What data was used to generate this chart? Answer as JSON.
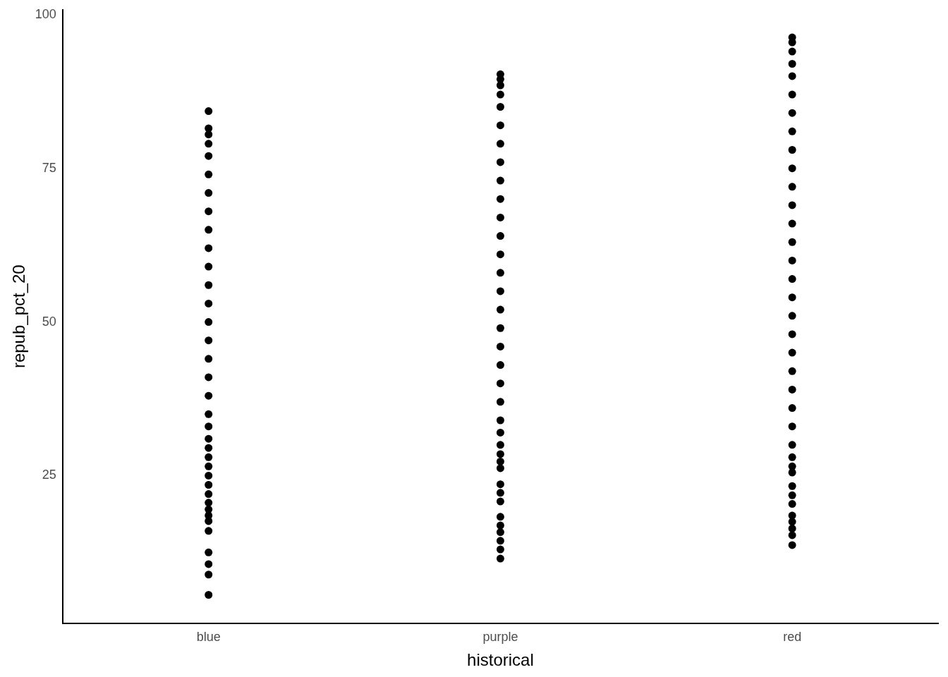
{
  "chart_data": {
    "type": "scatter",
    "xlabel": "historical",
    "ylabel": "repub_pct_20",
    "categories": [
      "blue",
      "purple",
      "red"
    ],
    "ylim": [
      1.0,
      100.8
    ],
    "yticks": [
      25,
      50,
      75,
      100
    ],
    "grid": false,
    "legend": false,
    "marker": "circle",
    "series": [
      {
        "color": "#000000",
        "x": [
          "blue",
          "blue",
          "blue",
          "blue",
          "blue",
          "blue",
          "blue",
          "blue",
          "blue",
          "blue",
          "blue",
          "blue",
          "blue",
          "blue",
          "blue",
          "blue",
          "blue",
          "blue",
          "blue",
          "blue",
          "blue",
          "blue",
          "blue",
          "blue",
          "blue",
          "blue",
          "blue",
          "blue",
          "blue",
          "blue",
          "blue",
          "blue",
          "blue",
          "blue",
          "blue",
          "blue"
        ],
        "values": [
          5.6,
          8.9,
          10.6,
          12.5,
          16.0,
          17.6,
          18.5,
          19.5,
          20.6,
          22.0,
          23.5,
          25.0,
          26.5,
          28.0,
          29.5,
          31,
          33,
          35,
          38,
          41,
          44,
          47,
          50,
          53,
          56,
          59,
          62,
          65,
          68,
          71,
          74,
          77,
          79,
          80.5,
          81.5,
          84.3
        ]
      },
      {
        "color": "#000000",
        "x": [
          "purple",
          "purple",
          "purple",
          "purple",
          "purple",
          "purple",
          "purple",
          "purple",
          "purple",
          "purple",
          "purple",
          "purple",
          "purple",
          "purple",
          "purple",
          "purple",
          "purple",
          "purple",
          "purple",
          "purple",
          "purple",
          "purple",
          "purple",
          "purple",
          "purple",
          "purple",
          "purple",
          "purple",
          "purple",
          "purple",
          "purple",
          "purple",
          "purple",
          "purple",
          "purple",
          "purple"
        ],
        "values": [
          11.5,
          13.0,
          14.4,
          15.8,
          16.9,
          18.3,
          20.8,
          22.2,
          23.6,
          26.2,
          27.3,
          28.5,
          30,
          32,
          34,
          37,
          40,
          43,
          46,
          49,
          52,
          55,
          58,
          61,
          64,
          67,
          70,
          73,
          76,
          79,
          82,
          85,
          87,
          88.5,
          89.5,
          90.3
        ]
      },
      {
        "color": "#000000",
        "x": [
          "red",
          "red",
          "red",
          "red",
          "red",
          "red",
          "red",
          "red",
          "red",
          "red",
          "red",
          "red",
          "red",
          "red",
          "red",
          "red",
          "red",
          "red",
          "red",
          "red",
          "red",
          "red",
          "red",
          "red",
          "red",
          "red",
          "red",
          "red",
          "red",
          "red",
          "red",
          "red",
          "red",
          "red",
          "red",
          "red"
        ],
        "values": [
          13.7,
          15.3,
          16.4,
          17.5,
          18.5,
          20.4,
          21.8,
          23.3,
          25.5,
          26.5,
          28,
          30,
          33,
          36,
          39,
          42,
          45,
          48,
          51,
          54,
          57,
          60,
          63,
          66,
          69,
          72,
          75,
          78,
          81,
          84,
          87,
          90,
          92,
          94,
          95.5,
          96.3
        ]
      }
    ]
  }
}
